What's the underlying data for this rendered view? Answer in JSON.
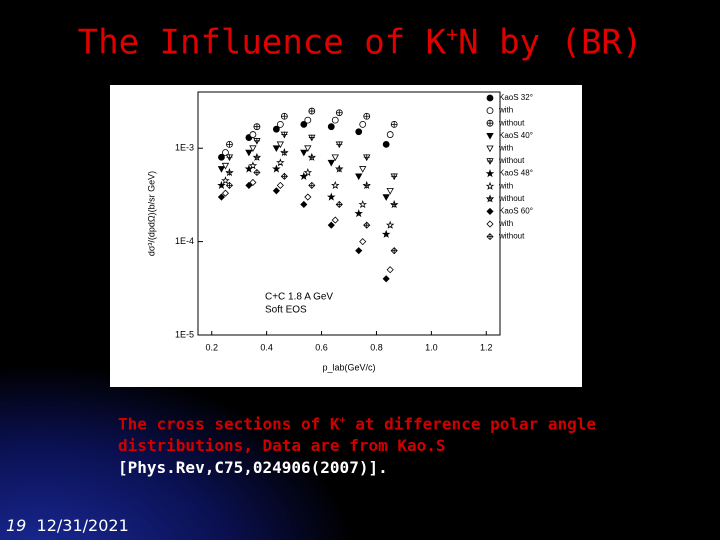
{
  "slide": {
    "title": {
      "before": "The Influence of K",
      "sup": "+",
      "after": "N by (BR)"
    },
    "caption": {
      "line1_before": "The cross sections of  K",
      "line1_sup": "+",
      "line1_after": " at difference polar angle",
      "line2": "distributions, Data are from Kao.S",
      "line3": "[Phys.Rev,C75,024906(2007)]."
    },
    "footer": {
      "number": "19",
      "date": "12/31/2021"
    }
  },
  "chart_data": {
    "type": "scatter",
    "log_y": true,
    "x_label": "p_lab(GeV/c)",
    "y_label": "dσ³/(dpdΩ)(b/sr GeV)",
    "annotations": [
      "C+C 1.8 A GeV",
      "Soft EOS"
    ],
    "xlim": [
      0.15,
      1.25
    ],
    "xticks": [
      0.2,
      0.4,
      0.6,
      0.8,
      {
        "value": 1,
        "label": "1.0"
      },
      1.2
    ],
    "ylim": [
      1e-05,
      0.004
    ],
    "yticks": [
      {
        "value": 1e-05,
        "label": "1E-5"
      },
      {
        "value": 0.0001,
        "label": "1E-4"
      },
      {
        "value": 0.001,
        "label": "1E-3"
      }
    ],
    "x": [
      0.25,
      0.35,
      0.45,
      0.55,
      0.65,
      0.75,
      0.85
    ],
    "series": [
      {
        "name": "KaoS 32°",
        "marker": "circle",
        "fill": "filled",
        "color": "#000000",
        "values": [
          0.0008,
          0.0013,
          0.0016,
          0.0018,
          0.0017,
          0.0015,
          0.0011
        ]
      },
      {
        "name": "with",
        "marker": "circle",
        "fill": "open",
        "color": "#000000",
        "values": [
          0.0009,
          0.0014,
          0.0018,
          0.002,
          0.002,
          0.0018,
          0.0014
        ]
      },
      {
        "name": "without",
        "marker": "circle",
        "fill": "crossed",
        "color": "#000000",
        "values": [
          0.0011,
          0.0017,
          0.0022,
          0.0025,
          0.0024,
          0.0022,
          0.0018
        ]
      },
      {
        "name": "KaoS 40°",
        "marker": "triangle",
        "fill": "filled",
        "color": "#000000",
        "values": [
          0.0006,
          0.0009,
          0.001,
          0.0009,
          0.0007,
          0.0005,
          0.0003
        ]
      },
      {
        "name": "with",
        "marker": "triangle",
        "fill": "open",
        "color": "#000000",
        "values": [
          0.00065,
          0.001,
          0.0011,
          0.001,
          0.0008,
          0.0006,
          0.00035
        ]
      },
      {
        "name": "without",
        "marker": "triangle",
        "fill": "crossed",
        "color": "#000000",
        "values": [
          0.0008,
          0.0012,
          0.0014,
          0.0013,
          0.0011,
          0.0008,
          0.0005
        ]
      },
      {
        "name": "KaoS 48°",
        "marker": "star",
        "fill": "filled",
        "color": "#000000",
        "values": [
          0.0004,
          0.0006,
          0.0006,
          0.0005,
          0.0003,
          0.0002,
          0.00012
        ]
      },
      {
        "name": "with",
        "marker": "star",
        "fill": "open",
        "color": "#000000",
        "values": [
          0.00045,
          0.00065,
          0.0007,
          0.00055,
          0.0004,
          0.00025,
          0.00015
        ]
      },
      {
        "name": "without",
        "marker": "star",
        "fill": "crossed",
        "color": "#000000",
        "values": [
          0.00055,
          0.0008,
          0.0009,
          0.0008,
          0.0006,
          0.0004,
          0.00025
        ]
      },
      {
        "name": "KaoS 60°",
        "marker": "diamond",
        "fill": "filled",
        "color": "#000000",
        "values": [
          0.0003,
          0.0004,
          0.00035,
          0.00025,
          0.00015,
          8e-05,
          4e-05
        ]
      },
      {
        "name": "with",
        "marker": "diamond",
        "fill": "open",
        "color": "#000000",
        "values": [
          0.00033,
          0.00043,
          0.0004,
          0.0003,
          0.00017,
          0.0001,
          5e-05
        ]
      },
      {
        "name": "without",
        "marker": "diamond",
        "fill": "crossed",
        "color": "#000000",
        "values": [
          0.0004,
          0.00055,
          0.0005,
          0.0004,
          0.00025,
          0.00015,
          8e-05
        ]
      }
    ]
  }
}
